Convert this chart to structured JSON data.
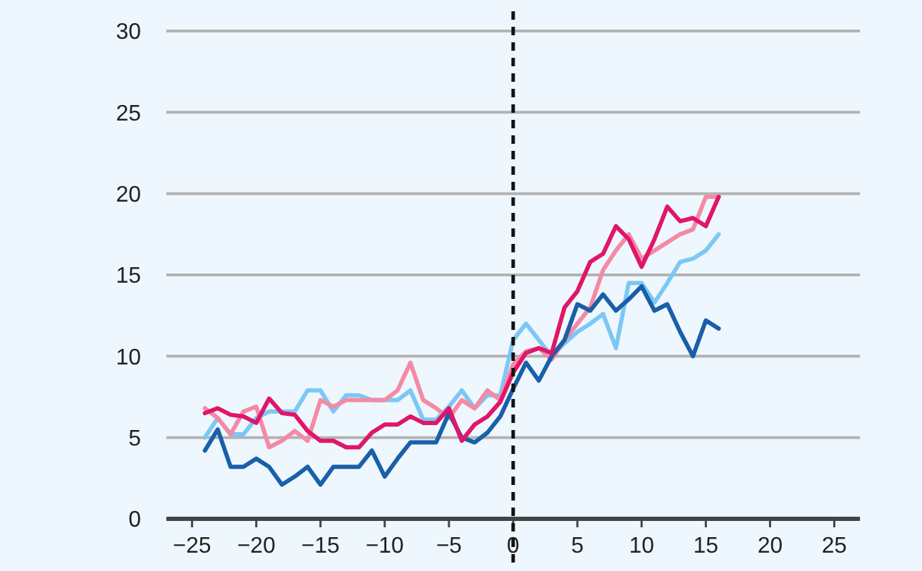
{
  "chart_data": {
    "type": "line",
    "x": [
      -24,
      -23,
      -22,
      -21,
      -20,
      -19,
      -18,
      -17,
      -16,
      -15,
      -14,
      -13,
      -12,
      -11,
      -10,
      -9,
      -8,
      -7,
      -6,
      -5,
      -4,
      -3,
      -2,
      -1,
      0,
      1,
      2,
      3,
      4,
      5,
      6,
      7,
      8,
      9,
      10,
      11,
      12,
      13,
      14,
      15,
      16
    ],
    "series": [
      {
        "color": "#7cc8f5",
        "values": [
          5,
          6.2,
          5.2,
          5.2,
          6.2,
          6.6,
          6.6,
          6.6,
          7.9,
          7.9,
          6.6,
          7.6,
          7.6,
          7.3,
          7.3,
          7.3,
          7.9,
          6.1,
          6.1,
          6.9,
          7.9,
          6.8,
          7.6,
          7.6,
          11,
          12,
          11,
          10,
          10.8,
          11.5,
          12,
          12.6,
          10.5,
          14.5,
          14.5,
          13.3,
          14.5,
          15.8,
          16,
          16.5,
          17.5
        ]
      },
      {
        "color": "#f48aa5",
        "values": [
          6.8,
          6.2,
          5.2,
          6.6,
          6.9,
          4.4,
          4.8,
          5.4,
          4.8,
          7.3,
          6.9,
          7.3,
          7.3,
          7.3,
          7.3,
          7.9,
          9.6,
          7.3,
          6.8,
          6.2,
          7.3,
          6.8,
          7.9,
          7.3,
          9.5,
          10.3,
          10.5,
          9.8,
          11,
          12,
          13,
          15.3,
          16.5,
          17.5,
          16,
          16.5,
          17,
          17.5,
          17.8,
          19.8,
          19.8
        ]
      },
      {
        "color": "#1a5fa8",
        "values": [
          4.2,
          5.5,
          3.2,
          3.2,
          3.7,
          3.2,
          2.1,
          2.6,
          3.2,
          2.1,
          3.2,
          3.2,
          3.2,
          4.2,
          2.6,
          3.7,
          4.7,
          4.7,
          4.7,
          6.5,
          5,
          4.7,
          5.3,
          6.3,
          8,
          9.6,
          8.5,
          10,
          11,
          13.2,
          12.8,
          13.8,
          12.8,
          13.5,
          14.3,
          12.8,
          13.2,
          11.5,
          10,
          12.2,
          11.7
        ]
      },
      {
        "color": "#e0166a",
        "values": [
          6.5,
          6.8,
          6.4,
          6.3,
          5.9,
          7.4,
          6.5,
          6.4,
          5.4,
          4.8,
          4.8,
          4.4,
          4.4,
          5.3,
          5.8,
          5.8,
          6.3,
          5.9,
          5.9,
          6.8,
          4.8,
          5.8,
          6.3,
          7.2,
          9,
          10.2,
          10.5,
          10.2,
          13,
          14,
          15.8,
          16.3,
          18,
          17.2,
          15.5,
          17.2,
          19.2,
          18.3,
          18.5,
          18,
          19.8
        ]
      }
    ],
    "xlim": [
      -27,
      27
    ],
    "xticks": [
      {
        "value": -25,
        "label": "−25"
      },
      {
        "value": -20,
        "label": "−20"
      },
      {
        "value": -15,
        "label": "−15"
      },
      {
        "value": -10,
        "label": "−10"
      },
      {
        "value": -5,
        "label": "−5"
      },
      0,
      5,
      10,
      15,
      20,
      25
    ],
    "ylim": [
      0,
      30
    ],
    "yticks": [
      0,
      5,
      10,
      15,
      20,
      25,
      30
    ],
    "grid": "y",
    "ref_lines": [
      {
        "axis": "x",
        "value": 0,
        "color": "#111111",
        "line_style": "dashed"
      }
    ]
  }
}
